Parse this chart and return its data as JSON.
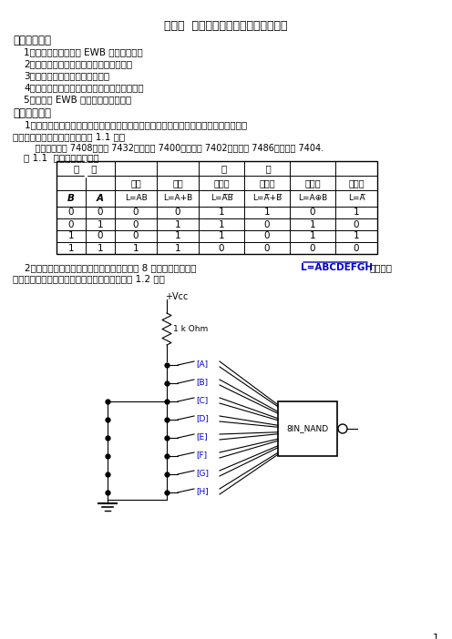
{
  "title": "实验一  电子电路仿真方法与门电路实验",
  "section1": "一、实验目的",
  "items1": [
    "1．熟悉电路仿真软件 EWB 的使用方法．",
    "2．验证常用集成逻辑门电路的逻辑功能．",
    "3．掌握各种门电路的逻辑符号．",
    "4．了解集成电路的外引线排列及其使用方法．",
    "5．掌握用 EWB 设计新元件的方法．"
  ],
  "section2": "二、实验内容",
  "para1a": "    1．用逻辑门电路库中的集成逻辑门电路分别验证二输入与门、或非门、异或门和反相器",
  "para1b": "的逻辑功能，将验证结果填入表 1.1 中。",
  "note": "    注：与门型号 7408，或门 7432，与非门 7400，或非门 7402，异或门 7486，反相器 7404.",
  "table_title": "表 1.1  门电路逻辑功能表",
  "table_data": [
    [
      0,
      0,
      0,
      0,
      1,
      1,
      0,
      1
    ],
    [
      0,
      1,
      0,
      1,
      1,
      0,
      1,
      0
    ],
    [
      1,
      0,
      0,
      1,
      1,
      0,
      1,
      1
    ],
    [
      1,
      1,
      1,
      1,
      0,
      0,
      0,
      0
    ]
  ],
  "para2a": "    2．用逻辑门电路库中的独立门电路设计一个 8 输入与非门，实现L=ABCDEFGH，写出逻",
  "para2b": "辑表达式，给出电路图，并验证逻辑功能填入表 1.2 中。",
  "input_labels": [
    "[A]",
    "[B]",
    "[C]",
    "[D]",
    "[E]",
    "[F]",
    "[G]",
    "[H]"
  ],
  "page_num": "1",
  "bg_color": "#ffffff",
  "text_color": "#000000",
  "blue_color": "#0000cd"
}
